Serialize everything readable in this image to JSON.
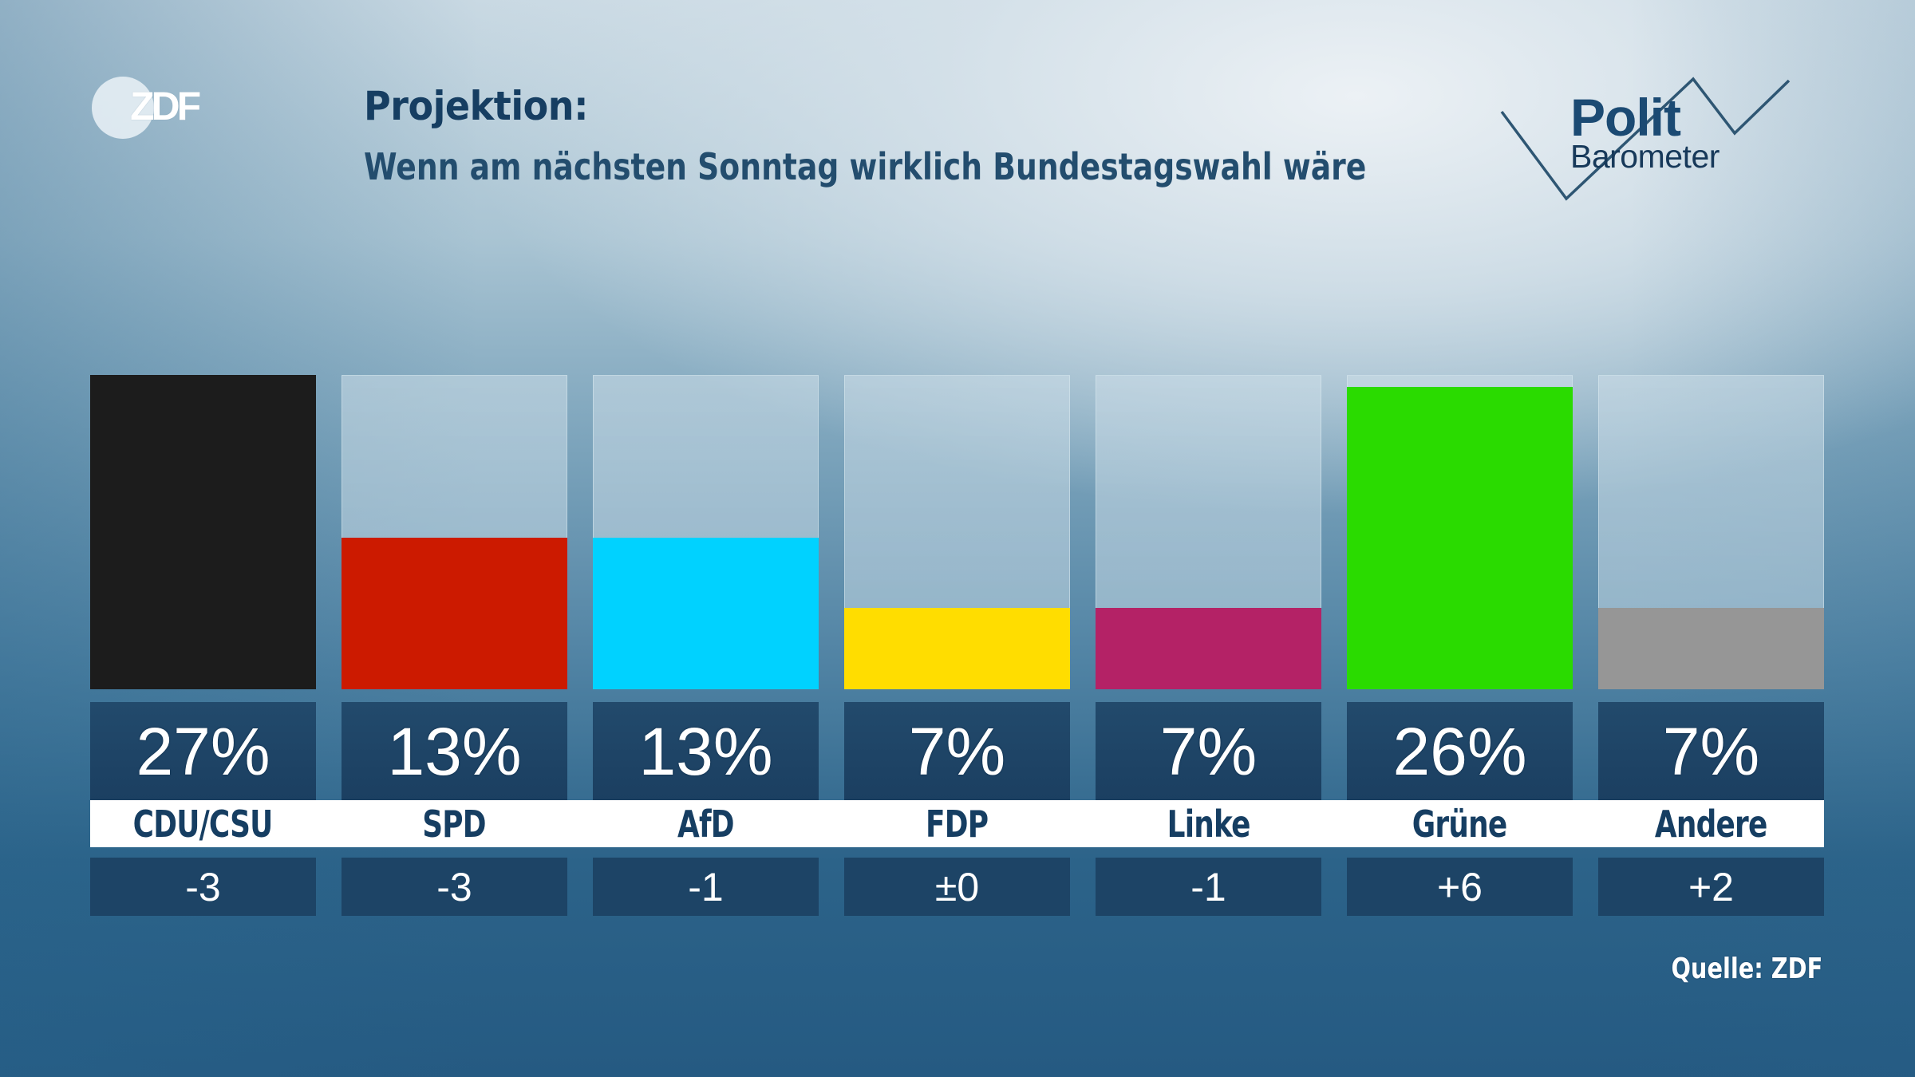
{
  "header": {
    "logo_text": "ZDF",
    "title": "Projektion:",
    "subtitle": "Wenn am nächsten Sonntag wirklich Bundestagswahl wäre",
    "brand": {
      "word1": "Polit",
      "word2": "Barometer"
    }
  },
  "footer": {
    "source": "Quelle: ZDF"
  },
  "chart_data": {
    "type": "bar",
    "title": "Projektion:",
    "subtitle": "Wenn am nächsten Sonntag wirklich Bundestagswahl wäre",
    "xlabel": "",
    "ylabel": "",
    "ylim": [
      0,
      27
    ],
    "grid": false,
    "categories": [
      "CDU/CSU",
      "SPD",
      "AfD",
      "FDP",
      "Linke",
      "Grüne",
      "Andere"
    ],
    "values": [
      27,
      13,
      13,
      7,
      7,
      26,
      7
    ],
    "value_labels": [
      "27%",
      "13%",
      "13%",
      "7%",
      "7%",
      "26%",
      "7%"
    ],
    "changes": [
      "-3",
      "-3",
      "-1",
      "±0",
      "-1",
      "+6",
      "+2"
    ],
    "colors": [
      "#1c1c1c",
      "#cc1a00",
      "#00d2ff",
      "#ffdd00",
      "#b42266",
      "#2adb00",
      "#969696"
    ],
    "source": "Quelle: ZDF"
  }
}
